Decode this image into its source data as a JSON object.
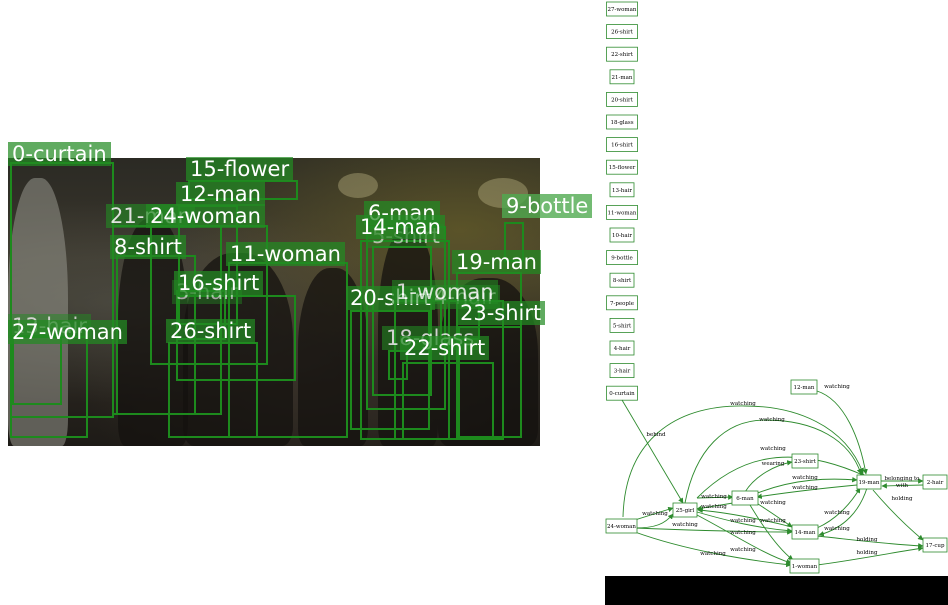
{
  "photo": {
    "boxes": [
      {
        "id": "0-curtain"
      },
      {
        "id": "13-hair"
      },
      {
        "id": "27-woman"
      },
      {
        "id": "21-man"
      },
      {
        "id": "24-woman"
      },
      {
        "id": "8-shirt"
      },
      {
        "id": "15-flower"
      },
      {
        "id": "12-man"
      },
      {
        "id": "11-woman"
      },
      {
        "id": "3-hair"
      },
      {
        "id": "16-shirt"
      },
      {
        "id": "26-shirt"
      },
      {
        "id": "6-man"
      },
      {
        "id": "5-shirt"
      },
      {
        "id": "14-man"
      },
      {
        "id": "9-bottle"
      },
      {
        "id": "19-man"
      },
      {
        "id": "20-shirt"
      },
      {
        "id": "4-hair"
      },
      {
        "id": "1-woman"
      },
      {
        "id": "23-shirt"
      },
      {
        "id": "18-glass"
      },
      {
        "id": "22-shirt"
      }
    ]
  },
  "graph": {
    "stacked_nodes": [
      "27-woman",
      "26-shirt",
      "22-shirt",
      "21-man",
      "20-shirt",
      "18-glass",
      "16-shirt",
      "15-flower",
      "13-hair",
      "11-woman",
      "10-hair",
      "9-bottle",
      "8-shirt",
      "7-people",
      "5-shirt",
      "4-hair",
      "3-hair",
      "0-curtain"
    ],
    "nodes": [
      "12-man",
      "23-shirt",
      "19-man",
      "2-hair",
      "6-man",
      "25-girl",
      "24-woman",
      "14-man",
      "17-cup",
      "1-woman"
    ],
    "edge_labels": {
      "watching": "watching",
      "behind": "behind",
      "wearing": "wearing",
      "holding": "holding",
      "belonging_to_1": "belonging to",
      "belonging_to_2": "with"
    }
  }
}
